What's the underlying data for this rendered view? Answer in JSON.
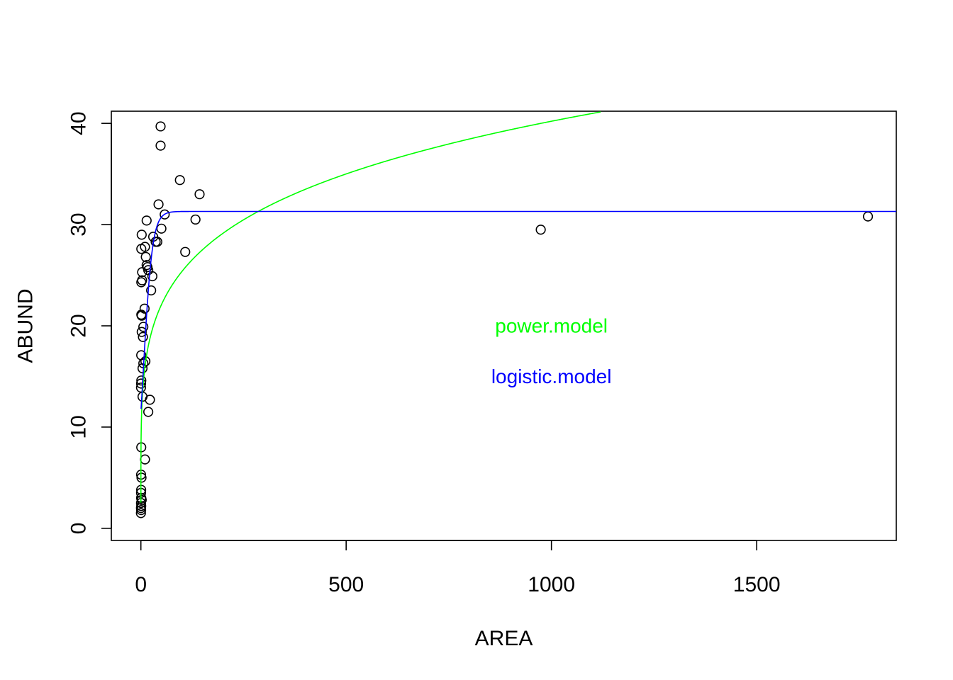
{
  "chart_data": {
    "type": "scatter",
    "title": "",
    "xlabel": "AREA",
    "ylabel": "ABUND",
    "xlim": [
      -72,
      1840
    ],
    "ylim": [
      -1.2,
      41.2
    ],
    "xticks": [
      0,
      500,
      1000,
      1500
    ],
    "yticks": [
      0,
      10,
      20,
      30,
      40
    ],
    "x_tick_labels": [
      "0",
      "500",
      "1000",
      "1500"
    ],
    "y_tick_labels": [
      "0",
      "10",
      "20",
      "30",
      "40"
    ],
    "grid": false,
    "legend": "none",
    "points": [
      [
        0.1,
        1.5
      ],
      [
        0.2,
        2.0
      ],
      [
        0.3,
        2.5
      ],
      [
        0.5,
        3.0
      ],
      [
        0.4,
        3.5
      ],
      [
        0.6,
        1.8
      ],
      [
        0.8,
        2.2
      ],
      [
        1.0,
        3.0
      ],
      [
        0.7,
        3.8
      ],
      [
        0.5,
        5.3
      ],
      [
        1.5,
        5.0
      ],
      [
        0.9,
        8.0
      ],
      [
        2.0,
        2.8
      ],
      [
        10,
        6.8
      ],
      [
        18,
        11.5
      ],
      [
        22,
        12.7
      ],
      [
        4,
        13.0
      ],
      [
        0.3,
        13.9
      ],
      [
        0.5,
        14.3
      ],
      [
        1.0,
        14.6
      ],
      [
        4,
        15.8
      ],
      [
        6,
        16.3
      ],
      [
        11,
        16.5
      ],
      [
        0.8,
        17.1
      ],
      [
        5,
        18.9
      ],
      [
        2,
        19.4
      ],
      [
        6,
        19.9
      ],
      [
        2,
        21.0
      ],
      [
        1,
        21.1
      ],
      [
        9,
        21.7
      ],
      [
        25,
        23.5
      ],
      [
        1,
        24.3
      ],
      [
        3,
        24.5
      ],
      [
        3,
        25.3
      ],
      [
        16,
        25.8
      ],
      [
        18,
        25.5
      ],
      [
        14,
        26.0
      ],
      [
        12,
        26.8
      ],
      [
        28,
        24.9
      ],
      [
        1,
        27.6
      ],
      [
        10,
        27.8
      ],
      [
        36,
        28.3
      ],
      [
        40,
        28.3
      ],
      [
        30,
        28.8
      ],
      [
        2,
        29.0
      ],
      [
        50,
        29.6
      ],
      [
        14,
        30.4
      ],
      [
        58,
        31.0
      ],
      [
        43,
        32.0
      ],
      [
        108,
        27.3
      ],
      [
        133,
        30.5
      ],
      [
        143,
        33.0
      ],
      [
        95,
        34.4
      ],
      [
        48,
        37.8
      ],
      [
        48,
        39.7
      ],
      [
        974,
        29.5
      ],
      [
        1771,
        30.8
      ]
    ],
    "series": [
      {
        "name": "power.model",
        "color": "#00ff00",
        "model": "power",
        "a": 10.1,
        "b": 0.2,
        "x_range": [
          0.001,
          1120
        ]
      },
      {
        "name": "logistic.model",
        "color": "#0000ff",
        "model": "logistic",
        "asym": 31.3,
        "xmid": 6.0,
        "scal": 11.0,
        "x_range": [
          0.5,
          1840
        ]
      }
    ],
    "annotations": [
      {
        "text": "power.model",
        "x": 1000,
        "y": 20.0,
        "color": "#00ff00"
      },
      {
        "text": "logistic.model",
        "x": 1000,
        "y": 15.0,
        "color": "#0000ff"
      }
    ]
  }
}
